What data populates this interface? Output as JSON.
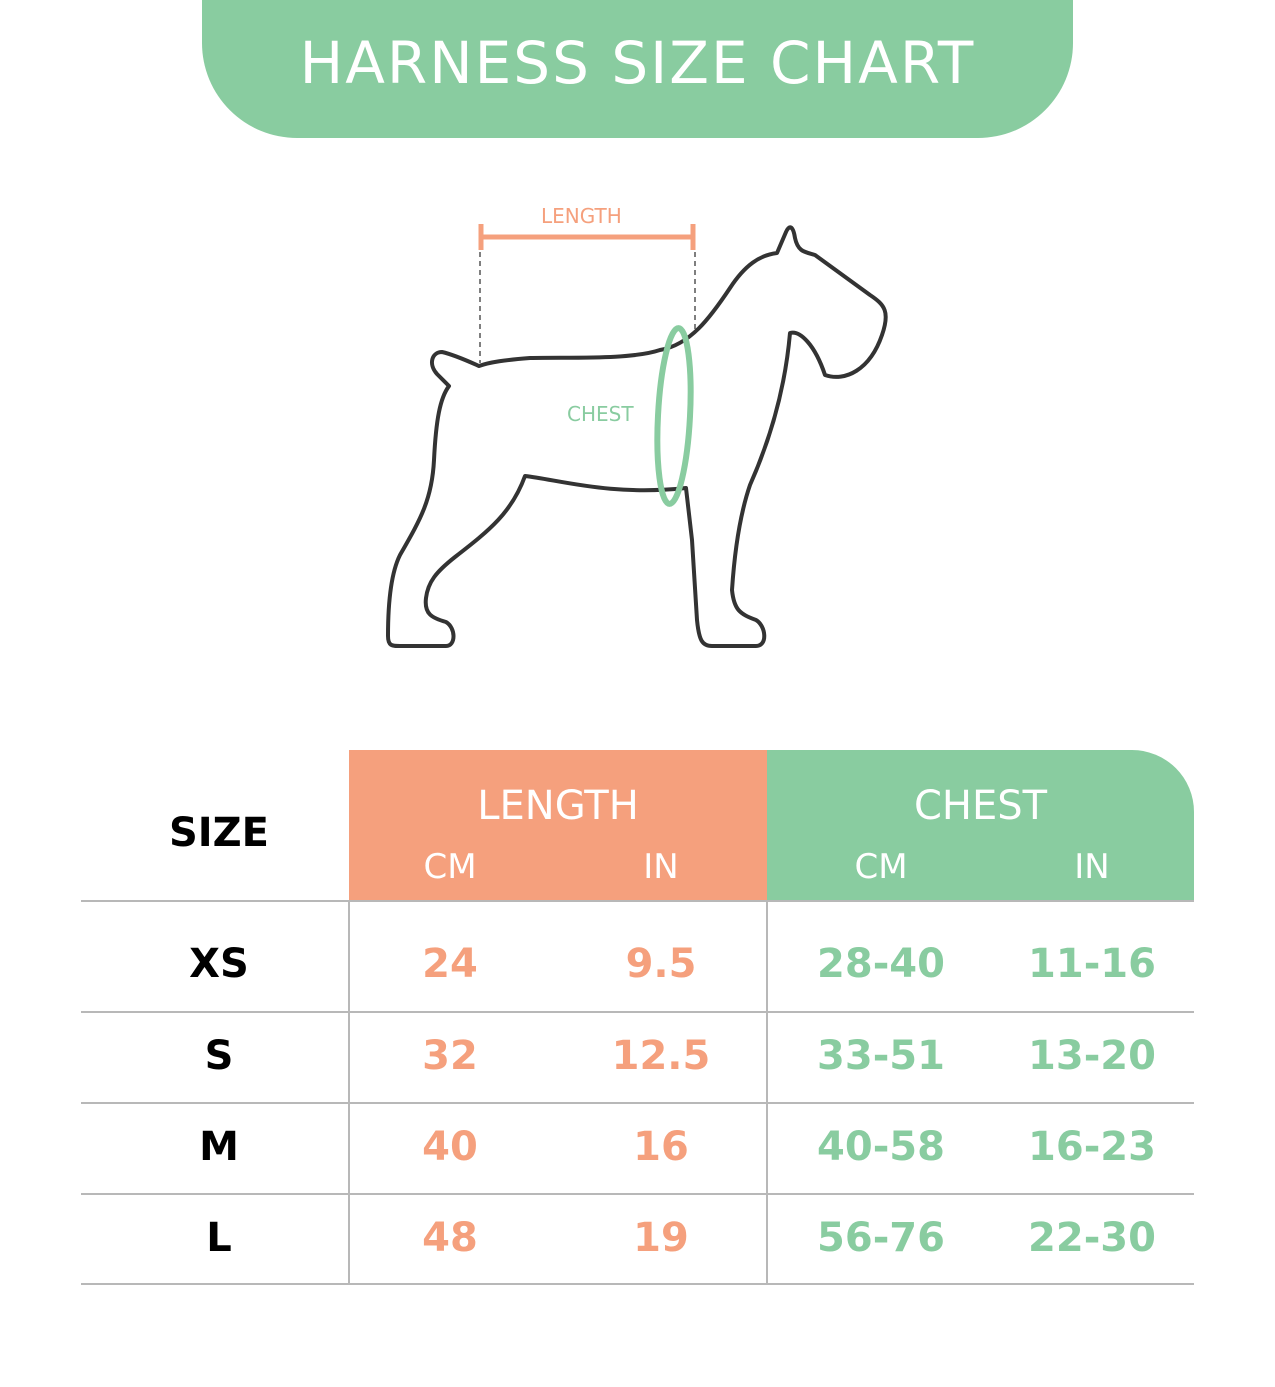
{
  "title": "HARNESS SIZE CHART",
  "diagram": {
    "length_label": "LENGTH",
    "chest_label": "CHEST"
  },
  "colors": {
    "green": "#89CCA0",
    "orange": "#F5A07D",
    "outline": "#333333"
  },
  "table": {
    "size_header": "SIZE",
    "length_header": "LENGTH",
    "chest_header": "CHEST",
    "unit_cm": "CM",
    "unit_in": "IN",
    "rows": [
      {
        "size": "XS",
        "length_cm": "24",
        "length_in": "9.5",
        "chest_cm": "28-40",
        "chest_in": "11-16"
      },
      {
        "size": "S",
        "length_cm": "32",
        "length_in": "12.5",
        "chest_cm": "33-51",
        "chest_in": "13-20"
      },
      {
        "size": "M",
        "length_cm": "40",
        "length_in": "16",
        "chest_cm": "40-58",
        "chest_in": "16-23"
      },
      {
        "size": "L",
        "length_cm": "48",
        "length_in": "19",
        "chest_cm": "56-76",
        "chest_in": "22-30"
      }
    ]
  }
}
